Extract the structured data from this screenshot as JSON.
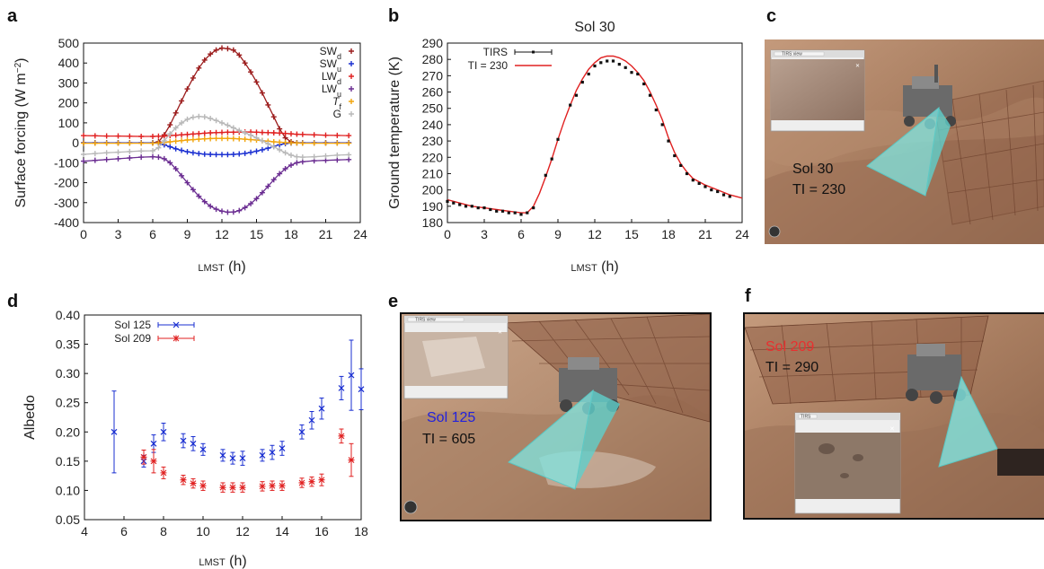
{
  "panels": {
    "a": "a",
    "b": "b",
    "c": "c",
    "d": "d",
    "e": "e",
    "f": "f"
  },
  "colors": {
    "SWd": "#9b1b1b",
    "SWu": "#1a2fd1",
    "LWd": "#e02020",
    "LWu": "#6a2c91",
    "Tf": "#f2a50c",
    "G": "#b8b8b8",
    "tirs": "#111111",
    "ti_line": "#e02020",
    "sol125": "#1a2fd1",
    "sol209": "#e02020"
  },
  "chart_data": [
    {
      "id": "a",
      "type": "line",
      "xlabel": "LMST (h)",
      "ylabel": "Surface forcing (W m⁻²)",
      "xlim": [
        0,
        24
      ],
      "ylim": [
        -400,
        500
      ],
      "xticks": [
        0,
        3,
        6,
        9,
        12,
        15,
        18,
        21,
        24
      ],
      "yticks": [
        -400,
        -300,
        -200,
        -100,
        0,
        100,
        200,
        300,
        400,
        500
      ],
      "legend_position": "top-right",
      "series": [
        {
          "name": "SWd",
          "legend_main": "SW",
          "legend_sub": "d",
          "legend_italic": false,
          "color_key": "SWd",
          "x": [
            0,
            1,
            2,
            3,
            4,
            5,
            6,
            6.5,
            7,
            7.5,
            8,
            8.5,
            9,
            9.5,
            10,
            10.5,
            11,
            11.5,
            12,
            12.5,
            13,
            13.5,
            14,
            14.5,
            15,
            15.5,
            16,
            16.5,
            17,
            17.5,
            18,
            18.5,
            19,
            20,
            21,
            22,
            23
          ],
          "y": [
            0,
            0,
            0,
            0,
            0,
            0,
            0,
            5,
            40,
            90,
            150,
            210,
            270,
            325,
            375,
            415,
            445,
            465,
            475,
            472,
            465,
            440,
            400,
            355,
            305,
            250,
            190,
            130,
            70,
            25,
            5,
            0,
            0,
            0,
            0,
            0,
            0
          ]
        },
        {
          "name": "SWu",
          "legend_main": "SW",
          "legend_sub": "u",
          "legend_italic": false,
          "color_key": "SWu",
          "x": [
            0,
            1,
            2,
            3,
            4,
            5,
            6,
            6.5,
            7,
            7.5,
            8,
            8.5,
            9,
            9.5,
            10,
            10.5,
            11,
            11.5,
            12,
            12.5,
            13,
            13.5,
            14,
            14.5,
            15,
            15.5,
            16,
            16.5,
            17,
            17.5,
            18,
            18.5,
            19,
            20,
            21,
            22,
            23
          ],
          "y": [
            0,
            0,
            0,
            0,
            0,
            0,
            0,
            -2,
            -10,
            -20,
            -30,
            -38,
            -45,
            -50,
            -54,
            -57,
            -58,
            -59,
            -59,
            -59,
            -58,
            -56,
            -53,
            -48,
            -42,
            -35,
            -27,
            -18,
            -10,
            -4,
            -1,
            0,
            0,
            0,
            0,
            0,
            0
          ]
        },
        {
          "name": "LWd",
          "legend_main": "LW",
          "legend_sub": "d",
          "legend_italic": false,
          "color_key": "LWd",
          "x": [
            0,
            1,
            2,
            3,
            4,
            5,
            6,
            6.5,
            7,
            7.5,
            8,
            8.5,
            9,
            9.5,
            10,
            10.5,
            11,
            11.5,
            12,
            12.5,
            13,
            13.5,
            14,
            14.5,
            15,
            15.5,
            16,
            16.5,
            17,
            17.5,
            18,
            18.5,
            19,
            20,
            21,
            22,
            23
          ],
          "y": [
            36,
            35,
            34,
            34,
            33,
            32,
            32,
            33,
            34,
            36,
            38,
            40,
            42,
            44,
            46,
            48,
            50,
            51,
            52,
            53,
            53,
            54,
            54,
            54,
            53,
            52,
            51,
            50,
            49,
            47,
            45,
            43,
            42,
            40,
            38,
            37,
            36
          ]
        },
        {
          "name": "LWu",
          "legend_main": "LW",
          "legend_sub": "u",
          "legend_italic": false,
          "color_key": "LWu",
          "x": [
            0,
            1,
            2,
            3,
            4,
            5,
            6,
            6.5,
            7,
            7.5,
            8,
            8.5,
            9,
            9.5,
            10,
            10.5,
            11,
            11.5,
            12,
            12.5,
            13,
            13.5,
            14,
            14.5,
            15,
            15.5,
            16,
            16.5,
            17,
            17.5,
            18,
            18.5,
            19,
            20,
            21,
            22,
            23
          ],
          "y": [
            -92,
            -88,
            -84,
            -80,
            -76,
            -72,
            -70,
            -72,
            -80,
            -100,
            -130,
            -165,
            -200,
            -235,
            -268,
            -295,
            -318,
            -333,
            -343,
            -348,
            -347,
            -340,
            -325,
            -305,
            -280,
            -250,
            -218,
            -185,
            -155,
            -130,
            -112,
            -100,
            -95,
            -90,
            -88,
            -86,
            -84
          ]
        },
        {
          "name": "Tf",
          "legend_main": "T",
          "legend_sub": "f",
          "legend_italic": true,
          "color_key": "Tf",
          "x": [
            0,
            1,
            2,
            3,
            4,
            5,
            6,
            6.5,
            7,
            7.5,
            8,
            8.5,
            9,
            9.5,
            10,
            10.5,
            11,
            11.5,
            12,
            12.5,
            13,
            13.5,
            14,
            14.5,
            15,
            15.5,
            16,
            16.5,
            17,
            17.5,
            18,
            18.5,
            19,
            20,
            21,
            22,
            23
          ],
          "y": [
            -2,
            -2,
            -2,
            -2,
            -2,
            -2,
            -2,
            -1,
            2,
            5,
            8,
            11,
            14,
            16,
            18,
            20,
            21,
            22,
            22,
            22,
            21,
            20,
            18,
            16,
            14,
            11,
            8,
            5,
            3,
            1,
            0,
            -1,
            -2,
            -2,
            -2,
            -2,
            -2
          ]
        },
        {
          "name": "G",
          "legend_main": "G",
          "legend_sub": "",
          "legend_italic": false,
          "color_key": "G",
          "x": [
            0,
            1,
            2,
            3,
            4,
            5,
            6,
            6.5,
            7,
            7.5,
            8,
            8.5,
            9,
            9.5,
            10,
            10.5,
            11,
            11.5,
            12,
            12.5,
            13,
            13.5,
            14,
            14.5,
            15,
            15.5,
            16,
            16.5,
            17,
            17.5,
            18,
            18.5,
            19,
            20,
            21,
            22,
            23
          ],
          "y": [
            -58,
            -54,
            -50,
            -47,
            -44,
            -41,
            -40,
            -25,
            10,
            45,
            75,
            100,
            118,
            128,
            132,
            130,
            122,
            112,
            100,
            88,
            75,
            62,
            50,
            38,
            25,
            10,
            -5,
            -20,
            -35,
            -50,
            -62,
            -70,
            -72,
            -70,
            -66,
            -62,
            -60
          ]
        }
      ]
    },
    {
      "id": "b",
      "type": "scatter",
      "title": "Sol 30",
      "xlabel": "LMST (h)",
      "ylabel": "Ground temperature (K)",
      "xlim": [
        0,
        24
      ],
      "ylim": [
        180,
        290
      ],
      "xticks": [
        0,
        3,
        6,
        9,
        12,
        15,
        18,
        21,
        24
      ],
      "yticks": [
        180,
        190,
        200,
        210,
        220,
        230,
        240,
        250,
        260,
        270,
        280,
        290
      ],
      "legend_position": "top-left",
      "series": [
        {
          "name": "TIRS",
          "kind": "points",
          "x": [
            0,
            0.5,
            1,
            1.5,
            2,
            2.5,
            3,
            3.5,
            4,
            4.5,
            5,
            5.5,
            6,
            6.5,
            7,
            8,
            8.5,
            9,
            10,
            10.5,
            11,
            11.5,
            12,
            12.5,
            13,
            13.5,
            14,
            14.5,
            15,
            15.5,
            16,
            16.5,
            17,
            17.5,
            18,
            18.5,
            19,
            19.5,
            20,
            20.5,
            21,
            21.5,
            22,
            22.5,
            23
          ],
          "y": [
            193,
            192,
            191,
            190,
            190,
            189,
            189,
            188,
            187,
            187,
            186,
            186,
            185,
            186,
            189,
            209,
            219,
            231,
            252,
            258,
            266,
            271,
            276,
            278,
            279,
            279,
            277,
            275,
            272,
            271,
            265,
            258,
            249,
            240,
            230,
            221,
            215,
            210,
            206,
            204,
            202,
            200,
            199,
            197,
            196
          ]
        },
        {
          "name": "TI = 230",
          "kind": "line",
          "x": [
            0,
            1,
            2,
            3,
            4,
            5,
            6,
            6.5,
            7,
            7.5,
            8,
            8.5,
            9,
            9.5,
            10,
            10.5,
            11,
            11.5,
            12,
            12.5,
            13,
            13.5,
            14,
            14.5,
            15,
            15.5,
            16,
            16.5,
            17,
            17.5,
            18,
            18.5,
            19,
            19.5,
            20,
            21,
            22,
            23,
            24
          ],
          "y": [
            194,
            192,
            190,
            189,
            188,
            187,
            186,
            186,
            190,
            198,
            208,
            219,
            231,
            242,
            252,
            261,
            268,
            274,
            278,
            281,
            282,
            282,
            281,
            279,
            276,
            272,
            267,
            260,
            252,
            243,
            232,
            223,
            216,
            211,
            207,
            203,
            200,
            197,
            195
          ]
        }
      ]
    },
    {
      "id": "d",
      "type": "scatter",
      "xlabel": "LMST (h)",
      "ylabel": "Albedo",
      "xlim": [
        4,
        18
      ],
      "ylim": [
        0.05,
        0.4
      ],
      "xticks": [
        4,
        6,
        8,
        10,
        12,
        14,
        16,
        18
      ],
      "yticks": [
        0.05,
        0.1,
        0.15,
        0.2,
        0.25,
        0.3,
        0.35,
        0.4
      ],
      "legend_position": "top-left",
      "series": [
        {
          "name": "Sol 125",
          "x": [
            5.5,
            7,
            7.5,
            8,
            9,
            9.5,
            10,
            11,
            11.5,
            12,
            13,
            13.5,
            14,
            15,
            15.5,
            16,
            17,
            17.5,
            18
          ],
          "y": [
            0.2,
            0.15,
            0.18,
            0.2,
            0.185,
            0.18,
            0.17,
            0.16,
            0.155,
            0.155,
            0.16,
            0.165,
            0.172,
            0.2,
            0.22,
            0.24,
            0.275,
            0.297,
            0.273
          ],
          "err": [
            0.07,
            0.01,
            0.015,
            0.015,
            0.012,
            0.012,
            0.01,
            0.01,
            0.01,
            0.012,
            0.01,
            0.012,
            0.012,
            0.012,
            0.015,
            0.018,
            0.02,
            0.06,
            0.035
          ]
        },
        {
          "name": "Sol 209",
          "x": [
            7,
            7.5,
            8,
            9,
            9.5,
            10,
            11,
            11.5,
            12,
            13,
            13.5,
            14,
            15,
            15.5,
            16,
            17,
            17.5
          ],
          "y": [
            0.157,
            0.15,
            0.13,
            0.118,
            0.112,
            0.108,
            0.105,
            0.105,
            0.105,
            0.107,
            0.108,
            0.108,
            0.113,
            0.115,
            0.118,
            0.193,
            0.152
          ],
          "err": [
            0.012,
            0.02,
            0.01,
            0.008,
            0.008,
            0.008,
            0.008,
            0.008,
            0.008,
            0.008,
            0.008,
            0.008,
            0.008,
            0.008,
            0.01,
            0.012,
            0.028
          ]
        }
      ]
    }
  ],
  "scenes": {
    "c": {
      "sol": "Sol 30",
      "ti": "TI = 230",
      "inset_title": "TIRS view"
    },
    "e": {
      "sol": "Sol 125",
      "ti": "TI = 605",
      "inset_title": "TIRS view"
    },
    "f": {
      "sol": "Sol 209",
      "ti": "TI = 290",
      "inset_title": "TIRS"
    }
  }
}
